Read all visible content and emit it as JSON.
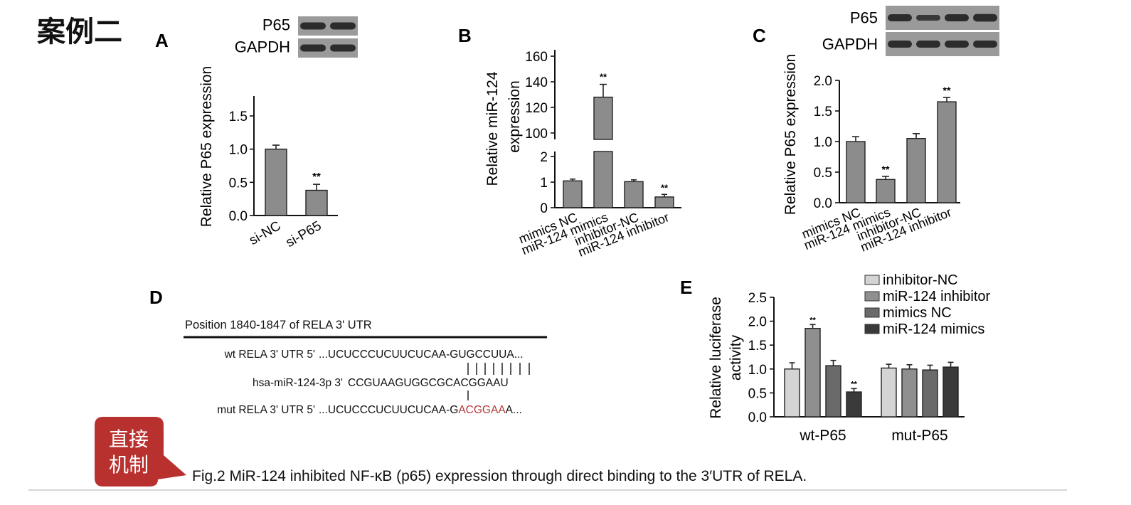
{
  "header": {
    "case_label": "案例二"
  },
  "colors": {
    "bar": "#8c8c8c",
    "mut_red": "#b23a3a",
    "callout": "#b8312f",
    "blot_bg": "#9a9a9a",
    "band": "#262626"
  },
  "chart_data": [
    {
      "panel": "A",
      "type": "bar",
      "blot": {
        "rows": [
          "P65",
          "GAPDH"
        ],
        "lanes": 2,
        "band_strength": [
          [
            1,
            1
          ],
          [
            1,
            1
          ]
        ]
      },
      "categories": [
        "si-NC",
        "si-P65"
      ],
      "values": [
        1.0,
        0.38
      ],
      "errors": [
        0.06,
        0.09
      ],
      "significance": [
        "",
        "**"
      ],
      "ylabel": "Relative P65 expression",
      "ylim": [
        0,
        1.8
      ],
      "yticks": [
        "0.0",
        "0.5",
        "1.0",
        "1.5"
      ]
    },
    {
      "panel": "B",
      "type": "bar",
      "broken_axis": true,
      "categories": [
        "mimics NC",
        "miR-124 mimics",
        "inhibitor-NC",
        "miR-124 inhibitor"
      ],
      "values": [
        1.05,
        128,
        1.02,
        0.42
      ],
      "errors": [
        0.07,
        10,
        0.07,
        0.1
      ],
      "significance": [
        "",
        "**",
        "",
        "**"
      ],
      "ylabel": [
        "Relative miR-124",
        "expression"
      ],
      "yticks_lower": [
        "0",
        "1",
        "2"
      ],
      "yticks_upper": [
        "100",
        "120",
        "140",
        "160"
      ],
      "ylim_lower": [
        0,
        2.2
      ],
      "ylim_upper": [
        95,
        165
      ]
    },
    {
      "panel": "C",
      "type": "bar",
      "blot": {
        "rows": [
          "P65",
          "GAPDH"
        ],
        "lanes": 4,
        "band_strength": [
          [
            1,
            0.7,
            1,
            1.1
          ],
          [
            1,
            1,
            1,
            1
          ]
        ]
      },
      "categories": [
        "mimics NC",
        "miR-124 mimics",
        "inhibitor-NC",
        "miR-124 inhibitor"
      ],
      "values": [
        1.0,
        0.38,
        1.05,
        1.65
      ],
      "errors": [
        0.08,
        0.05,
        0.08,
        0.07
      ],
      "significance": [
        "",
        "**",
        "",
        "**"
      ],
      "ylabel": "Relative P65 expression",
      "ylim": [
        0,
        2.0
      ],
      "yticks": [
        "0.0",
        "0.5",
        "1.0",
        "1.5",
        "2.0"
      ]
    },
    {
      "panel": "E",
      "type": "bar",
      "groups": [
        "wt-P65",
        "mut-P65"
      ],
      "series": [
        {
          "name": "inhibitor-NC",
          "color": "#d4d4d4",
          "values": [
            1.0,
            1.02
          ],
          "errors": [
            0.13,
            0.08
          ]
        },
        {
          "name": "miR-124 inhibitor",
          "color": "#8f8f8f",
          "values": [
            1.85,
            1.0
          ],
          "errors": [
            0.08,
            0.09
          ]
        },
        {
          "name": "mimics NC",
          "color": "#6a6a6a",
          "values": [
            1.07,
            0.98
          ],
          "errors": [
            0.11,
            0.1
          ]
        },
        {
          "name": "miR-124 mimics",
          "color": "#3a3a3a",
          "values": [
            0.52,
            1.04
          ],
          "errors": [
            0.07,
            0.1
          ]
        }
      ],
      "significance": [
        [
          "",
          "**",
          "",
          "**"
        ],
        [
          "",
          "",
          "",
          ""
        ]
      ],
      "ylabel": [
        "Relative luciferase",
        "activity"
      ],
      "ylim": [
        0,
        2.5
      ],
      "yticks": [
        "0.0",
        "0.5",
        "1.0",
        "1.5",
        "2.0",
        "2.5"
      ]
    }
  ],
  "panel_labels": {
    "a": "A",
    "b": "B",
    "c": "C",
    "d": "D",
    "e": "E"
  },
  "panel_d": {
    "header": "Position 1840-1847 of RELA 3' UTR",
    "wt_label": "wt RELA 3' UTR 5'",
    "wt_seq": "...UCUCCCUCUUCUCAA-GUGCCUUA...",
    "mir_label": "hsa-miR-124-3p  3'",
    "mir_seq": "CCGUAAGUGGCGCACGGAAU",
    "mut_label": "mut RELA 3' UTR 5'",
    "mut_seq_prefix": "...UCUCCCUCUUCUCAA-G",
    "mut_seq_mutated": "ACGGAA",
    "mut_seq_suffix": "A..."
  },
  "callout": {
    "line1": "直接",
    "line2": "机制"
  },
  "caption": "Fig.2 MiR-124 inhibited NF-κB (p65) expression through direct binding to the 3′UTR of RELA."
}
